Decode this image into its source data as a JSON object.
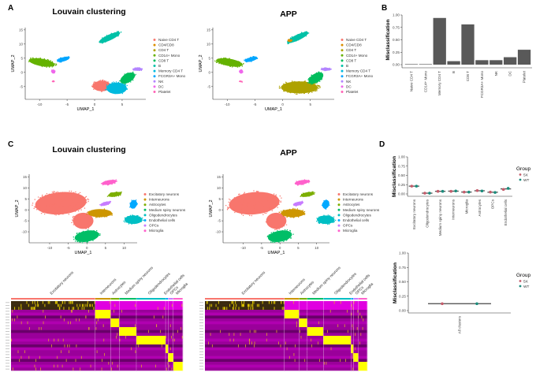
{
  "panel_labels": {
    "a": "A",
    "b": "B",
    "c": "C",
    "d": "D"
  },
  "chart_data": [
    {
      "id": "A1",
      "type": "scatter",
      "title": "Louvain clustering",
      "xlabel": "UMAP_1",
      "ylabel": "UMAP_2",
      "xticks": [
        "-10",
        "-5",
        "0",
        "5"
      ],
      "yticks": [
        "-5",
        "0",
        "5",
        "10",
        "15"
      ],
      "xlim": [
        -12.6,
        9.3
      ],
      "ylim": [
        -9.5,
        15
      ],
      "legend": [
        "Naive CD4 T",
        "CD4/CD8",
        "CD4 T",
        "CD14+ Mono",
        "CD8 T",
        "B",
        "Memory CD4 T",
        "FCGR3A+ Mono",
        "NK",
        "DC",
        "Platelet"
      ],
      "legend_position": "right"
    },
    {
      "id": "A2",
      "type": "scatter",
      "title": "APP",
      "xlabel": "UMAP_1",
      "ylabel": "UMAP_2",
      "xticks": [
        "-10",
        "-5",
        "0",
        "5"
      ],
      "yticks": [
        "-5",
        "0",
        "5",
        "10",
        "15"
      ],
      "xlim": [
        -12.6,
        9.3
      ],
      "ylim": [
        -9.5,
        15
      ],
      "legend": [
        "Naive CD4 T",
        "CD4/CD8",
        "CD4 T",
        "CD14+ Mono",
        "CD8 T",
        "B",
        "Memory CD4 T",
        "FCGR3A+ Mono",
        "NK",
        "DC",
        "Platelet"
      ],
      "legend_position": "right"
    },
    {
      "id": "B",
      "type": "bar",
      "ylabel": "Misclassification",
      "categories": [
        "Naive CD4 T",
        "CD14+ Mono",
        "Memory CD4 T",
        "B",
        "CD8 T",
        "FCGR3A+ Mono",
        "NK",
        "DC",
        "Platelet"
      ],
      "values": [
        0.01,
        0.01,
        0.94,
        0.07,
        0.81,
        0.09,
        0.09,
        0.15,
        0.3
      ],
      "yticks": [
        "0.00",
        "0.25",
        "0.50",
        "0.75",
        "1.00"
      ],
      "ylim": [
        0,
        1
      ],
      "bar_color": "#595959"
    },
    {
      "id": "C1",
      "type": "scatter",
      "title": "Louvain clustering",
      "xlabel": "UMAP_1",
      "ylabel": "UMAP_2",
      "xticks": [
        "-10",
        "-5",
        "0",
        "5",
        "10"
      ],
      "yticks": [
        "-10",
        "-5",
        "0",
        "5",
        "10",
        "15"
      ],
      "legend": [
        "Excitatory neurons",
        "Interneurons",
        "Astrocytes",
        "Medium spiny neurons",
        "Oligodendrocytes",
        "Endothelial cells",
        "OPCs",
        "Microglia"
      ],
      "legend_position": "right"
    },
    {
      "id": "C2",
      "type": "scatter",
      "title": "APP",
      "xlabel": "UMAP_1",
      "ylabel": "UMAP_2",
      "xticks": [
        "-10",
        "-5",
        "0",
        "5",
        "10"
      ],
      "yticks": [
        "-10",
        "-5",
        "0",
        "5",
        "10",
        "15"
      ],
      "legend": [
        "Excitatory neurons",
        "Interneurons",
        "Astrocytes",
        "Medium spiny neurons",
        "Oligodendrocytes",
        "Endothelial cells",
        "OPCs",
        "Microglia"
      ],
      "legend_position": "right"
    },
    {
      "id": "C3",
      "type": "heatmap",
      "columns": [
        "Excitatory neurons",
        "Interneurons",
        "Astrocytes",
        "Medium spiny neurons",
        "Oligodendrocytes",
        "Endothelial cells",
        "OPCs",
        "Microglia"
      ],
      "colors": {
        "low": "#FF00FF",
        "mid": "#000000",
        "high": "#FFFF00"
      }
    },
    {
      "id": "C4",
      "type": "heatmap",
      "columns": [
        "Excitatory neurons",
        "Interneurons",
        "Astrocytes",
        "Medium spiny neurons",
        "Oligodendrocytes",
        "Endothelial cells",
        "OPCs",
        "Microglia"
      ],
      "colors": {
        "low": "#FF00FF",
        "mid": "#000000",
        "high": "#FFFF00"
      }
    },
    {
      "id": "D1",
      "type": "scatter",
      "ylabel": "Misclassification",
      "categories": [
        "Excitatory neurons",
        "Oligodendrocytes",
        "Medium spiny neurons",
        "Interneurons",
        "Microglia",
        "Astrocytes",
        "OPCs",
        "Endothelial cells"
      ],
      "series": [
        {
          "name": "5X",
          "color": "#C45C6B",
          "values": [
            0.21,
            0.02,
            0.07,
            0.07,
            0.05,
            0.09,
            0.05,
            0.12
          ]
        },
        {
          "name": "WT",
          "color": "#1A8C7C",
          "values": [
            0.21,
            0.02,
            0.07,
            0.08,
            0.05,
            0.08,
            0.04,
            0.15
          ]
        }
      ],
      "yticks": [
        "0.00",
        "0.25",
        "0.50",
        "0.75",
        "1.00"
      ],
      "ylim": [
        0,
        1
      ],
      "legend_title": "Group",
      "legend_position": "right"
    },
    {
      "id": "D2",
      "type": "scatter",
      "ylabel": "Misclassification",
      "categories": [
        "All clusters"
      ],
      "series": [
        {
          "name": "5X",
          "color": "#C45C6B",
          "values": [
            0.12
          ]
        },
        {
          "name": "WT",
          "color": "#1A8C7C",
          "values": [
            0.12
          ]
        }
      ],
      "yticks": [
        "0.00",
        "0.25",
        "0.50",
        "0.75",
        "1.00"
      ],
      "ylim": [
        0,
        1
      ],
      "legend_title": "Group",
      "legend_position": "right"
    }
  ],
  "palettes": {
    "pbmc": [
      "#F8766D",
      "#DB8E00",
      "#AEA200",
      "#64B200",
      "#00BD5C",
      "#00C1A7",
      "#00BADE",
      "#00A6FF",
      "#B385FF",
      "#EF67EB",
      "#FF63B6"
    ],
    "brain": [
      "#F8766D",
      "#CD9600",
      "#7CAE00",
      "#00BE67",
      "#00BFC4",
      "#00A9FF",
      "#C77CFF",
      "#FF61CC"
    ]
  }
}
